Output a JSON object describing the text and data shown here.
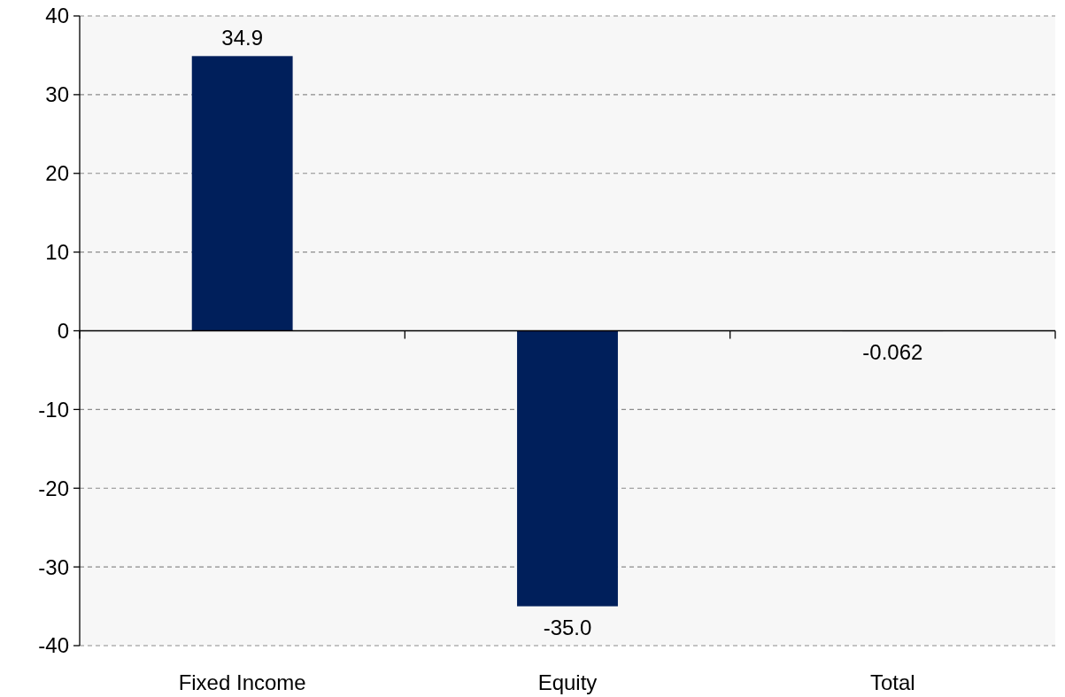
{
  "chart_data": {
    "type": "bar",
    "categories": [
      "Fixed Income",
      "Equity",
      "Total"
    ],
    "values": [
      34.9,
      -35.0,
      -0.062
    ],
    "value_labels": [
      "34.9",
      "-35.0",
      "-0.062"
    ],
    "color": "#001f5b",
    "ylim": [
      -40,
      40
    ],
    "yticks": [
      -40,
      -30,
      -20,
      -10,
      0,
      10,
      20,
      30,
      40
    ],
    "grid": "y"
  }
}
